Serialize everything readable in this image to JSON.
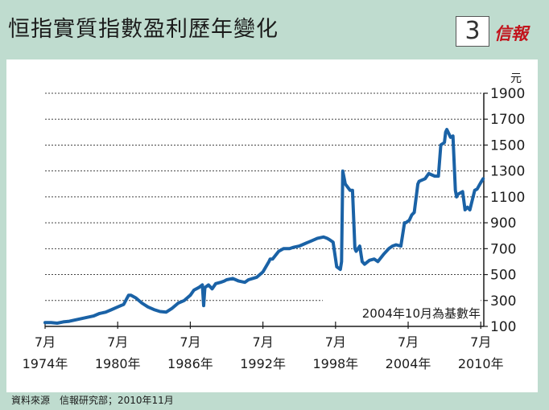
{
  "header": {
    "title": "恒指實質指數盈利歷年變化",
    "figure_number": "3",
    "brand": "信報"
  },
  "footer": {
    "source": "資料來源　信報研究部；2010年11月"
  },
  "chart_data": {
    "type": "line",
    "title": "恒指實質指數盈利歷年變化",
    "ylabel": "元",
    "ylim": [
      100,
      1900
    ],
    "yticks": [
      100,
      300,
      500,
      700,
      900,
      1100,
      1300,
      1500,
      1700,
      1900
    ],
    "xlim": [
      1974.5,
      2010.75
    ],
    "xticks": [
      {
        "x": 1974.5,
        "month": "7月",
        "year": "1974年"
      },
      {
        "x": 1980.5,
        "month": "7月",
        "year": "1980年"
      },
      {
        "x": 1986.5,
        "month": "7月",
        "year": "1986年"
      },
      {
        "x": 1992.5,
        "month": "7月",
        "year": "1992年"
      },
      {
        "x": 1998.5,
        "month": "7月",
        "year": "1998年"
      },
      {
        "x": 2004.5,
        "month": "7月",
        "year": "2004年"
      },
      {
        "x": 2010.5,
        "month": "7月",
        "year": "2010年"
      }
    ],
    "grid": "horizontal-dashed",
    "annotation": "2004年10月為基數年",
    "color": "#1a62a6",
    "series": [
      {
        "x": [
          1974.5,
          1975.0,
          1975.5,
          1976.0,
          1976.5,
          1977.0,
          1977.5,
          1978.0,
          1978.5,
          1979.0,
          1979.5,
          1980.0,
          1980.5,
          1981.0,
          1981.4,
          1981.6,
          1982.0,
          1982.5,
          1983.0,
          1983.5,
          1984.0,
          1984.5,
          1985.0,
          1985.5,
          1986.0,
          1986.5,
          1986.8,
          1987.2,
          1987.5,
          1987.6,
          1987.7,
          1988.0,
          1988.3,
          1988.6,
          1989.0,
          1989.3,
          1989.5,
          1990.0,
          1990.5,
          1991.0,
          1991.3,
          1992.0,
          1992.5,
          1993.0,
          1993.1,
          1993.3,
          1993.8,
          1994.2,
          1994.7,
          1995.0,
          1995.5,
          1996.0,
          1996.5,
          1997.0,
          1997.5,
          1997.8,
          1998.0,
          1998.3,
          1998.6,
          1998.9,
          1999.0,
          1999.1,
          1999.3,
          1999.7,
          1999.9,
          2000.1,
          2000.2,
          2000.5,
          2000.7,
          2000.9,
          2001.3,
          2001.7,
          2002.0,
          2002.5,
          2002.9,
          2003.2,
          2003.5,
          2003.9,
          2004.2,
          2004.3,
          2004.6,
          2004.8,
          2005.0,
          2005.3,
          2005.4,
          2005.9,
          2006.2,
          2006.7,
          2007.0,
          2007.2,
          2007.5,
          2007.6,
          2007.7,
          2008.0,
          2008.2,
          2008.4,
          2008.5,
          2008.6,
          2009.0,
          2009.2,
          2009.4,
          2009.6,
          2010.0,
          2010.2,
          2010.5,
          2010.7
        ],
        "y": [
          130,
          130,
          125,
          135,
          140,
          150,
          160,
          170,
          180,
          200,
          210,
          230,
          250,
          270,
          340,
          340,
          320,
          280,
          250,
          230,
          215,
          210,
          240,
          280,
          300,
          340,
          380,
          400,
          420,
          260,
          400,
          420,
          390,
          430,
          440,
          450,
          460,
          470,
          450,
          440,
          460,
          480,
          520,
          600,
          620,
          620,
          680,
          700,
          700,
          710,
          720,
          740,
          760,
          780,
          790,
          780,
          770,
          750,
          560,
          540,
          600,
          1300,
          1200,
          1150,
          1150,
          700,
          680,
          720,
          600,
          580,
          610,
          620,
          600,
          660,
          700,
          720,
          730,
          720,
          900,
          900,
          920,
          960,
          980,
          1200,
          1220,
          1240,
          1280,
          1260,
          1260,
          1500,
          1520,
          1600,
          1620,
          1560,
          1570,
          1150,
          1100,
          1120,
          1140,
          1000,
          1020,
          1000,
          1150,
          1160,
          1210,
          1240
        ]
      }
    ]
  }
}
